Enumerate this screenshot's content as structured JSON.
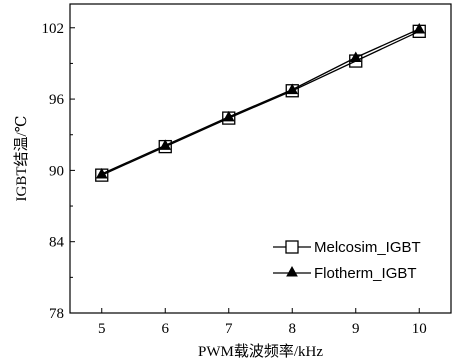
{
  "chart_data": {
    "type": "line",
    "title": "",
    "xlabel": "PWM载波频率/kHz",
    "ylabel": "IGBT结温/℃",
    "x": [
      5,
      6,
      7,
      8,
      9,
      10
    ],
    "xlim": [
      4.5,
      10.5
    ],
    "ylim": [
      78,
      104
    ],
    "x_ticks": [
      5,
      6,
      7,
      8,
      9,
      10
    ],
    "y_ticks": [
      78,
      84,
      90,
      96,
      102
    ],
    "grid": false,
    "legend_position": "lower-right",
    "series": [
      {
        "name": "Melcosim_IGBT",
        "marker": "open-square",
        "color": "#000000",
        "values": [
          89.6,
          92.0,
          94.4,
          96.7,
          99.2,
          101.7
        ]
      },
      {
        "name": "Flotherm_IGBT",
        "marker": "filled-triangle",
        "color": "#000000",
        "values": [
          89.7,
          92.1,
          94.5,
          96.8,
          99.5,
          101.9
        ]
      }
    ]
  }
}
